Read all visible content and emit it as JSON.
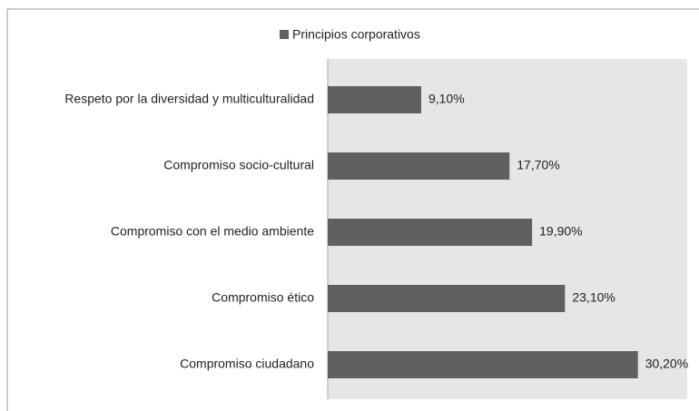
{
  "chart_data": {
    "type": "hbar",
    "categories": [
      "Respeto por la diversidad y multiculturalidad",
      "Compromiso socio-cultural",
      "Compromiso con el medio ambiente",
      "Compromiso ético",
      "Compromiso ciudadano"
    ],
    "series": [
      {
        "name": "Principios corporativos",
        "color": "#606060",
        "values": [
          9.1,
          17.7,
          19.9,
          23.1,
          30.2
        ],
        "value_labels": [
          "9,10%",
          "17,70%",
          "19,90%",
          "23,10%",
          "30,20%"
        ]
      }
    ],
    "xlim": [
      0,
      35
    ],
    "legend": "top"
  }
}
